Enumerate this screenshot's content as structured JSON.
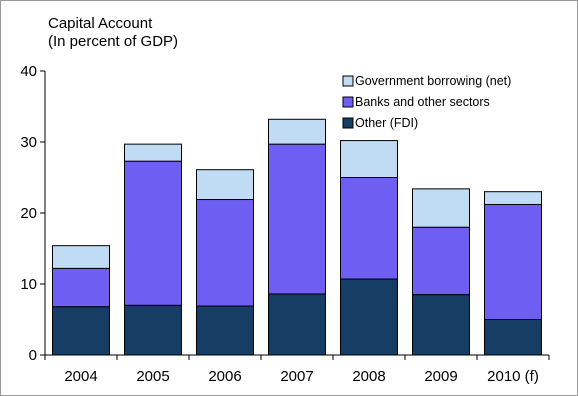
{
  "chart_data": {
    "type": "bar",
    "stacked": true,
    "title": "Capital Account",
    "subtitle": "(In percent of GDP)",
    "categories": [
      "2004",
      "2005",
      "2006",
      "2007",
      "2008",
      "2009",
      "2010 (f)"
    ],
    "series": [
      {
        "name": "Other (FDI)",
        "color": "#163d63",
        "values": [
          6.8,
          7.0,
          6.9,
          8.6,
          10.7,
          8.5,
          5.0
        ]
      },
      {
        "name": "Banks and other sectors",
        "color": "#6e5ef2",
        "values": [
          5.4,
          20.3,
          15.0,
          21.1,
          14.3,
          9.5,
          16.2
        ]
      },
      {
        "name": "Government borrowing (net)",
        "color": "#bfdcf4",
        "values": [
          3.2,
          2.4,
          4.2,
          3.5,
          5.2,
          5.4,
          1.8
        ]
      }
    ],
    "ylim": [
      0,
      40
    ],
    "yticks": [
      0,
      10,
      20,
      30,
      40
    ],
    "xlabel": "",
    "ylabel": "",
    "grid": false,
    "legend_position": "top-right"
  }
}
